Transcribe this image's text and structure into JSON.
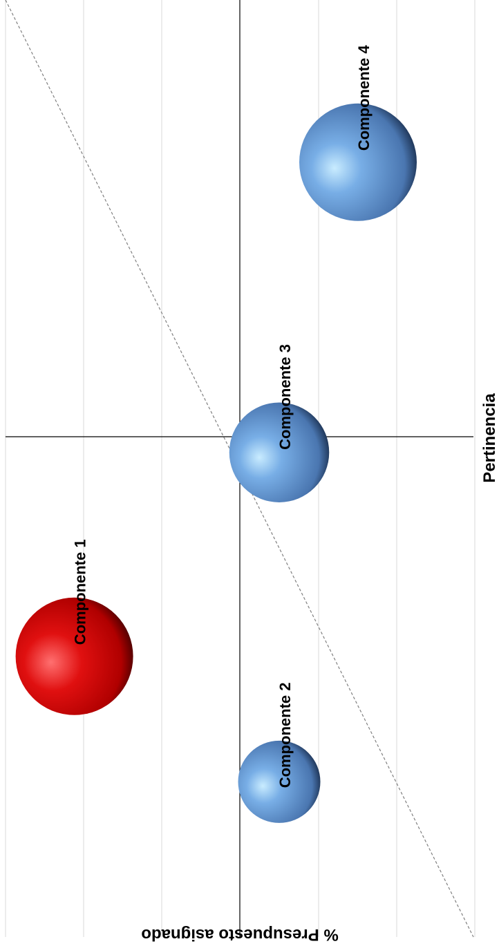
{
  "chart_data": {
    "type": "bubble",
    "rotated": "90-degrees-clockwise",
    "xlabel": "Pertinencia",
    "ylabel": "% Presupuesto asignado",
    "grid": true,
    "trendline": "linear-dashed",
    "series": [
      {
        "name": "Componente 1",
        "x": -1.4,
        "y": -2.1,
        "size": 1.0,
        "color": "#c00000"
      },
      {
        "name": "Componente 2",
        "x": -2.2,
        "y": 0.5,
        "size": 0.7,
        "color": "#4f81bd"
      },
      {
        "name": "Componente 3",
        "x": -0.1,
        "y": 0.5,
        "size": 0.85,
        "color": "#4f81bd"
      },
      {
        "name": "Componente 4",
        "x": 1.75,
        "y": 1.5,
        "size": 1.0,
        "color": "#4f81bd"
      }
    ]
  }
}
